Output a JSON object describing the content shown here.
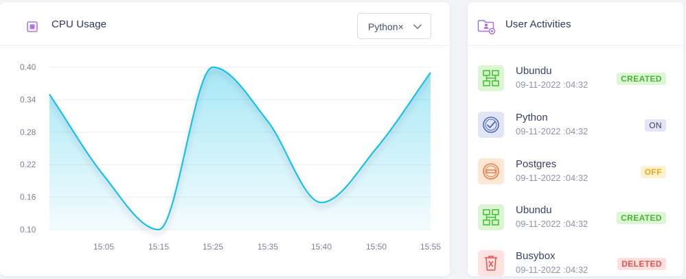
{
  "cpu": {
    "title": "CPU Usage",
    "icon": "cpu-chip-icon",
    "dropdown": {
      "selected": "Python×",
      "icon": "chevron-down-icon"
    }
  },
  "chart_data": {
    "type": "area",
    "title": "",
    "xlabel": "",
    "ylabel": "",
    "ylim": [
      0.1,
      0.4
    ],
    "y_ticks": [
      "0.40",
      "0.34",
      "0.28",
      "0.22",
      "0.16",
      "0.10"
    ],
    "x_tick_labels": [
      "15:05",
      "15:15",
      "15:25",
      "15:35",
      "15:40",
      "15:50",
      "15:55"
    ],
    "grid": true,
    "color": "#16c0e8",
    "points": [
      {
        "x": "15:00",
        "y": 0.35
      },
      {
        "x": "15:05",
        "y": 0.2
      },
      {
        "x": "15:15",
        "y": 0.1
      },
      {
        "x": "15:25",
        "y": 0.4
      },
      {
        "x": "15:35",
        "y": 0.3
      },
      {
        "x": "15:40",
        "y": 0.15
      },
      {
        "x": "15:50",
        "y": 0.25
      },
      {
        "x": "15:55",
        "y": 0.39
      }
    ]
  },
  "activities": {
    "title": "User Activities",
    "icon": "folder-user-icon",
    "items": [
      {
        "name": "Ubundu",
        "time": "09-11-2022 :04:32",
        "status": "CREATED",
        "icon": "network-nodes-icon",
        "icon_bg": "#dcf5d3",
        "icon_color": "#3bbf2b",
        "badge_bg": "#dff6d6",
        "badge_color": "#46b535"
      },
      {
        "name": "Python",
        "time": "09-11-2022 :04:32",
        "status": "ON",
        "icon": "check-circle-icon",
        "icon_bg": "#e1e6f7",
        "icon_color": "#4b67b8",
        "badge_bg": "#e3e4f7",
        "badge_color": "#3a3f63"
      },
      {
        "name": "Postgres",
        "time": "09-11-2022 :04:32",
        "status": "OFF",
        "icon": "no-entry-icon",
        "icon_bg": "#fde8d6",
        "icon_color": "#ee7a45",
        "badge_bg": "#fff2cf",
        "badge_color": "#f0a61c"
      },
      {
        "name": "Ubundu",
        "time": "09-11-2022 :04:32",
        "status": "CREATED",
        "icon": "network-nodes-icon",
        "icon_bg": "#dcf5d3",
        "icon_color": "#3bbf2b",
        "badge_bg": "#dff6d6",
        "badge_color": "#46b535"
      },
      {
        "name": "Busybox",
        "time": "09-11-2022 :04:32",
        "status": "DELETED",
        "icon": "trash-icon",
        "icon_bg": "#fde2e1",
        "icon_color": "#e8504a",
        "badge_bg": "#fde0df",
        "badge_color": "#e8504a"
      }
    ]
  }
}
